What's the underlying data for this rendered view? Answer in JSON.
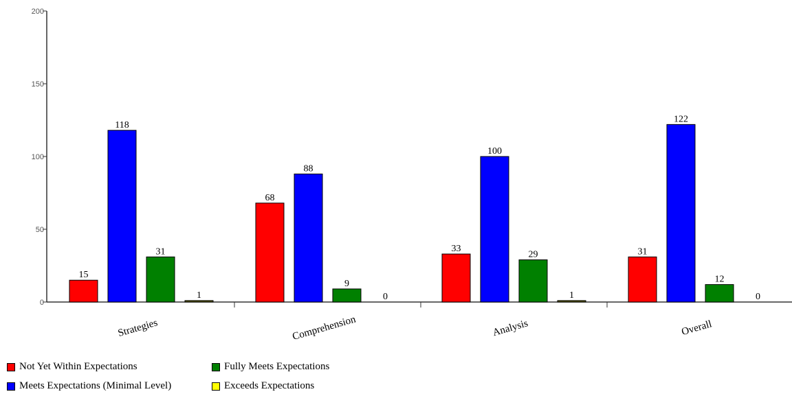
{
  "chart_data": {
    "type": "bar",
    "title": "",
    "xlabel": "",
    "ylabel": "",
    "ylim": [
      0,
      200
    ],
    "yticks": [
      0,
      50,
      100,
      150,
      200
    ],
    "categories": [
      "Strategies",
      "Comprehension",
      "Analysis",
      "Overall"
    ],
    "series": [
      {
        "name": "Not Yet Within Expectations",
        "color": "#ff0000",
        "values": [
          15,
          68,
          33,
          31
        ]
      },
      {
        "name": "Meets Expectations (Minimal Level)",
        "color": "#0000ff",
        "values": [
          118,
          88,
          100,
          122
        ]
      },
      {
        "name": "Fully Meets Expectations",
        "color": "#008000",
        "values": [
          31,
          9,
          29,
          12
        ]
      },
      {
        "name": "Exceeds Expectations",
        "color": "#ffff00",
        "values": [
          1,
          0,
          1,
          0
        ]
      }
    ],
    "grid": false,
    "legend_position": "bottom-left"
  }
}
